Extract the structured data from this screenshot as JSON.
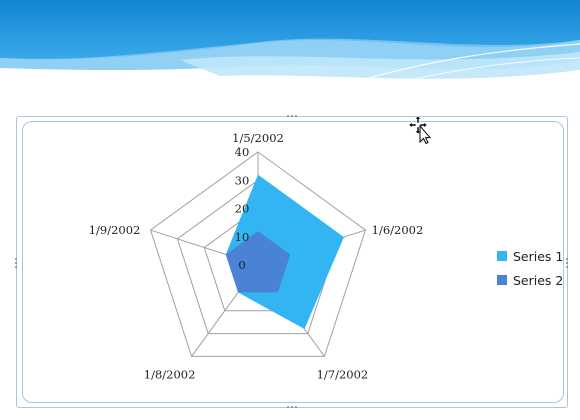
{
  "colors": {
    "banner_top": "#1a8fd8",
    "banner_light": "#9fd6f5",
    "series1": "#33b5f3",
    "series2": "#4a82d6",
    "grid": "#a0a0a0"
  },
  "chart_data": {
    "type": "radar",
    "categories": [
      "1/5/2002",
      "1/6/2002",
      "1/7/2002",
      "1/8/2002",
      "1/9/2002"
    ],
    "r_ticks": [
      "0",
      "10",
      "20",
      "30",
      "40"
    ],
    "r_range": [
      0,
      40
    ],
    "series": [
      {
        "name": "Series 1",
        "values": [
          32,
          32,
          28,
          12,
          12
        ]
      },
      {
        "name": "Series 2",
        "values": [
          12,
          12,
          12,
          12,
          12
        ]
      }
    ],
    "legend_position": "right"
  },
  "legend": {
    "items": [
      {
        "label": "Series 1"
      },
      {
        "label": "Series 2"
      }
    ]
  }
}
